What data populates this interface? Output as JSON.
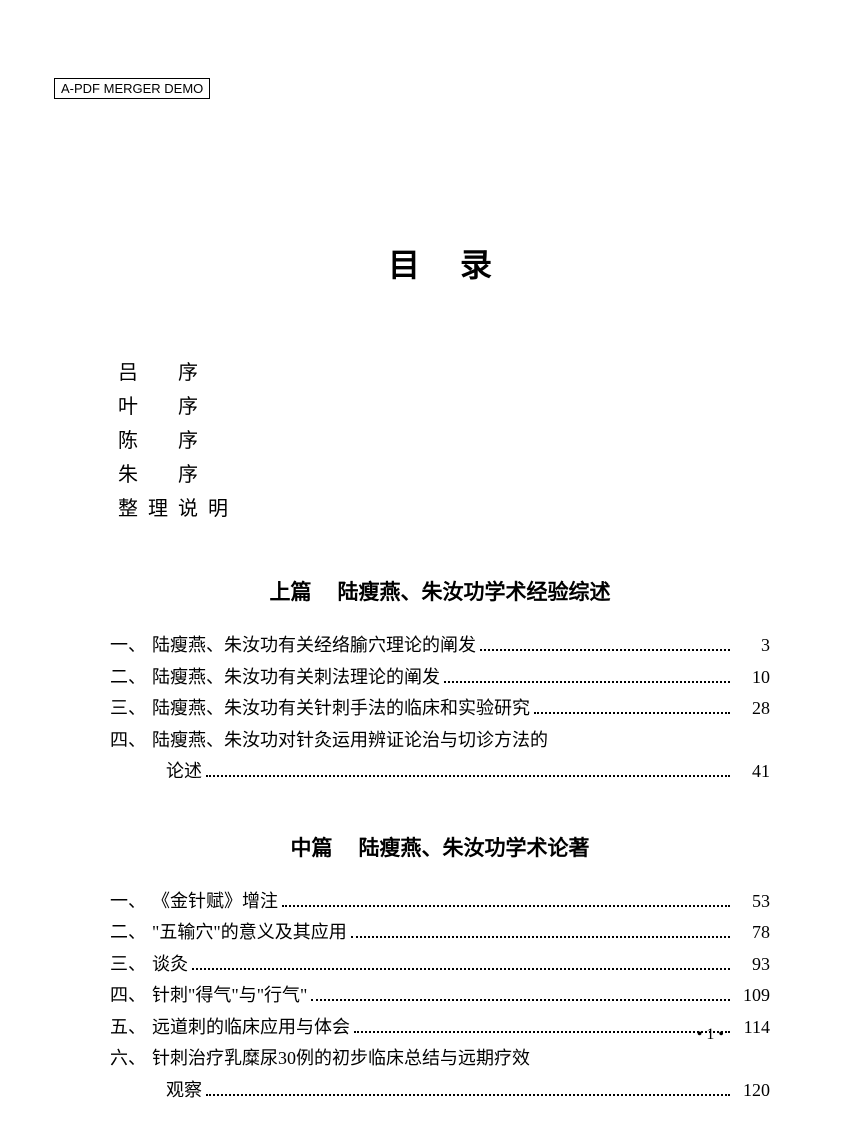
{
  "watermark": "A-PDF MERGER DEMO",
  "title": "目录",
  "prefaces": [
    "吕　序",
    "叶　序",
    "陈　序",
    "朱　序",
    "整理说明"
  ],
  "sections": [
    {
      "part": "上篇",
      "heading": "陆瘦燕、朱汝功学术经验综述",
      "entries": [
        {
          "num": "一、",
          "text": "陆瘦燕、朱汝功有关经络腧穴理论的阐发",
          "page": "3",
          "cont": null
        },
        {
          "num": "二、",
          "text": "陆瘦燕、朱汝功有关刺法理论的阐发",
          "page": "10",
          "cont": null
        },
        {
          "num": "三、",
          "text": "陆瘦燕、朱汝功有关针刺手法的临床和实验研究",
          "page": "28",
          "cont": null
        },
        {
          "num": "四、",
          "text": "陆瘦燕、朱汝功对针灸运用辨证论治与切诊方法的",
          "page": "41",
          "cont": "论述"
        }
      ]
    },
    {
      "part": "中篇",
      "heading": "陆瘦燕、朱汝功学术论著",
      "entries": [
        {
          "num": "一、",
          "text": "《金针赋》增注",
          "page": "53",
          "cont": null
        },
        {
          "num": "二、",
          "text": "\"五输穴\"的意义及其应用",
          "page": "78",
          "cont": null
        },
        {
          "num": "三、",
          "text": "谈灸",
          "page": "93",
          "cont": null
        },
        {
          "num": "四、",
          "text": "针刺\"得气\"与\"行气\"",
          "page": "109",
          "cont": null
        },
        {
          "num": "五、",
          "text": "远道刺的临床应用与体会",
          "page": "114",
          "cont": null
        },
        {
          "num": "六、",
          "text": "针刺治疗乳糜尿30例的初步临床总结与远期疗效",
          "page": "120",
          "cont": "观察"
        }
      ]
    }
  ],
  "page_number": "• 1 •"
}
